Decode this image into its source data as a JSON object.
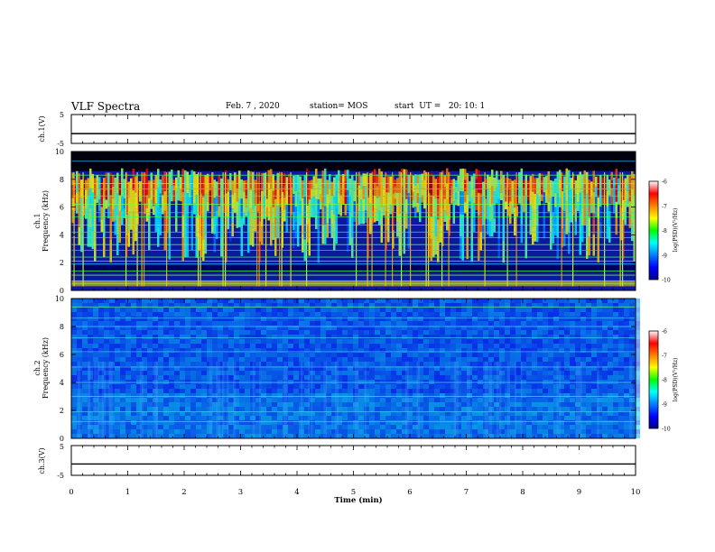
{
  "header": {
    "title": "VLF Spectra",
    "date": "Feb. 7 , 2020",
    "station": "station= MOS",
    "start": "start  UT =   20: 10: 1"
  },
  "chart_data": [
    {
      "type": "line",
      "title": "",
      "ylabel": "ch.1(V)",
      "ylim": [
        -5,
        5
      ],
      "yticks": [
        "5",
        "-5"
      ],
      "series": [
        {
          "values": [
            -1.6,
            -1.6
          ]
        }
      ]
    },
    {
      "type": "heatmap",
      "ylabel": "Frequency (kHz)",
      "channel": "ch.1",
      "ylim": [
        0,
        10
      ],
      "yticks": [
        "0",
        "2",
        "4",
        "6",
        "8",
        "10"
      ],
      "colorbar": {
        "label": "log(PSD)(V²/Hz)",
        "ticks": [
          "-6",
          "-7",
          "-8",
          "-9",
          "-10"
        ],
        "range": [
          -10,
          -6
        ]
      },
      "lines_khz": [
        0.5,
        0.7,
        1.1,
        1.4,
        1.9,
        2.1,
        2.4,
        2.9,
        3.3,
        3.8,
        4.2,
        4.7,
        5.3,
        5.6,
        6.2,
        6.8,
        7.3,
        7.7,
        8.3,
        9.3
      ]
    },
    {
      "type": "heatmap",
      "ylabel": "Frequency (kHz)",
      "channel": "ch.2",
      "ylim": [
        0,
        10
      ],
      "yticks": [
        "0",
        "2",
        "4",
        "6",
        "8",
        "10"
      ],
      "colorbar": {
        "label": "log(PSD)(V²/Hz)",
        "ticks": [
          "-6",
          "-7",
          "-8",
          "-9",
          "-10"
        ],
        "range": [
          -10,
          -6
        ]
      },
      "lines_khz": [
        1.2,
        1.9,
        3.0,
        4.0,
        5.1,
        6.2,
        7.2,
        8.0,
        8.6,
        9.4
      ]
    },
    {
      "type": "line",
      "ylabel": "ch.3(V)",
      "ylim": [
        -5,
        5
      ],
      "yticks": [
        "5",
        "-5"
      ],
      "series": [
        {
          "values": [
            -1.2,
            -1.2
          ]
        }
      ],
      "xlabel": "Time (min)",
      "xlim": [
        0,
        10
      ],
      "xticks": [
        "0",
        "1",
        "2",
        "3",
        "4",
        "5",
        "6",
        "7",
        "8",
        "9",
        "10"
      ]
    }
  ],
  "colors": {
    "frame": "#000000",
    "background": "#ffffff"
  }
}
